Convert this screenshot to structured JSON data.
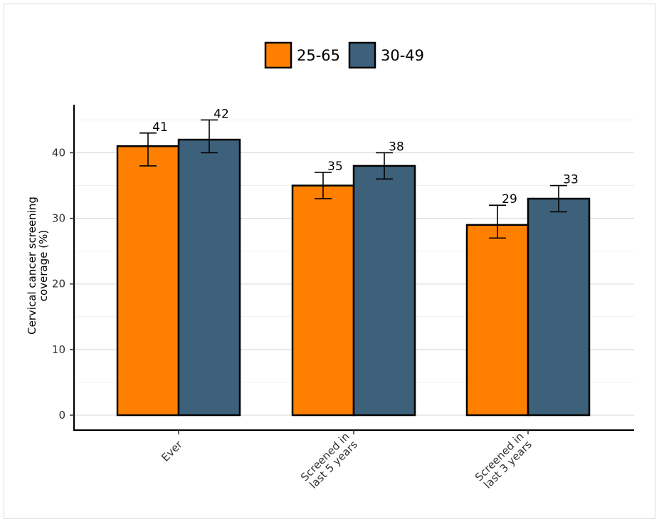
{
  "chart_data": {
    "type": "bar",
    "title": "",
    "xlabel": "",
    "ylabel": [
      "Cervical cancer screening",
      "coverage (%)"
    ],
    "categories": [
      [
        "Ever"
      ],
      [
        "Screened in",
        "last 5 years"
      ],
      [
        "Screened in",
        "last 3 years"
      ]
    ],
    "ylim": [
      0,
      47
    ],
    "yticks": [
      0,
      10,
      20,
      30,
      40
    ],
    "grid": true,
    "legend_position": "top-center",
    "series": [
      {
        "name": "25-65",
        "color": "#ff8000",
        "values": [
          41,
          35,
          29
        ],
        "err_low": [
          38,
          33,
          27
        ],
        "err_high": [
          43,
          37,
          32
        ]
      },
      {
        "name": "30-49",
        "color": "#3d617b",
        "values": [
          42,
          38,
          33
        ],
        "err_low": [
          40,
          36,
          31
        ],
        "err_high": [
          45,
          40,
          35
        ]
      }
    ]
  }
}
